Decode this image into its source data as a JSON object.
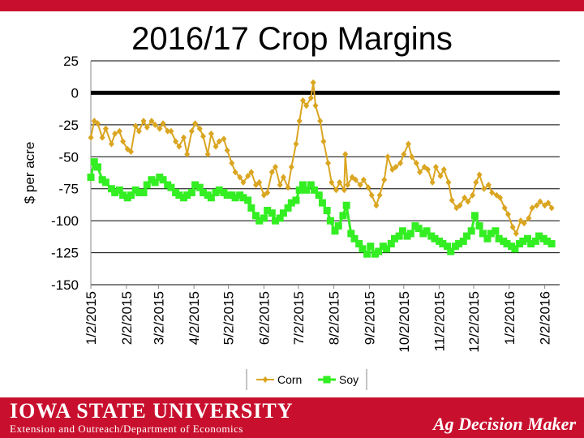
{
  "chart_data": {
    "type": "line",
    "title": "2016/17 Crop Margins",
    "ylabel": "$ per acre",
    "xlabel": "",
    "ylim": [
      -150,
      25
    ],
    "yticks": [
      25,
      0,
      -25,
      -50,
      -75,
      -100,
      -125,
      -150
    ],
    "xlim": [
      "2015-01-02",
      "2016-02-15"
    ],
    "x_tick_labels": [
      "1/2/2015",
      "2/2/2015",
      "3/2/2015",
      "4/2/2015",
      "5/2/2015",
      "6/2/2015",
      "7/2/2015",
      "8/2/2015",
      "9/2/2015",
      "10/2/2015",
      "11/2/2015",
      "12/2/2015",
      "1/2/2016",
      "2/2/2016"
    ],
    "x_tick_dates": [
      "2015-01-02",
      "2015-02-02",
      "2015-03-02",
      "2015-04-02",
      "2015-05-02",
      "2015-06-02",
      "2015-07-02",
      "2015-08-02",
      "2015-09-02",
      "2015-10-02",
      "2015-11-02",
      "2015-12-02",
      "2016-01-02",
      "2016-02-02"
    ],
    "grid": true,
    "zero_line": true,
    "legend_position": "bottom",
    "series": [
      {
        "name": "Corn",
        "color": "#daa520",
        "marker": "diamond",
        "points": [
          [
            "2015-01-02",
            -35
          ],
          [
            "2015-01-05",
            -22
          ],
          [
            "2015-01-08",
            -24
          ],
          [
            "2015-01-12",
            -35
          ],
          [
            "2015-01-15",
            -28
          ],
          [
            "2015-01-20",
            -40
          ],
          [
            "2015-01-23",
            -32
          ],
          [
            "2015-01-27",
            -30
          ],
          [
            "2015-01-30",
            -38
          ],
          [
            "2015-02-03",
            -44
          ],
          [
            "2015-02-06",
            -46
          ],
          [
            "2015-02-10",
            -26
          ],
          [
            "2015-02-13",
            -30
          ],
          [
            "2015-02-17",
            -22
          ],
          [
            "2015-02-20",
            -27
          ],
          [
            "2015-02-24",
            -22
          ],
          [
            "2015-02-27",
            -25
          ],
          [
            "2015-03-03",
            -28
          ],
          [
            "2015-03-06",
            -24
          ],
          [
            "2015-03-10",
            -30
          ],
          [
            "2015-03-13",
            -30
          ],
          [
            "2015-03-17",
            -38
          ],
          [
            "2015-03-20",
            -42
          ],
          [
            "2015-03-24",
            -35
          ],
          [
            "2015-03-27",
            -48
          ],
          [
            "2015-03-31",
            -30
          ],
          [
            "2015-04-03",
            -24
          ],
          [
            "2015-04-07",
            -28
          ],
          [
            "2015-04-10",
            -34
          ],
          [
            "2015-04-14",
            -48
          ],
          [
            "2015-04-17",
            -32
          ],
          [
            "2015-04-21",
            -42
          ],
          [
            "2015-04-24",
            -38
          ],
          [
            "2015-04-28",
            -36
          ],
          [
            "2015-05-01",
            -45
          ],
          [
            "2015-05-05",
            -55
          ],
          [
            "2015-05-08",
            -62
          ],
          [
            "2015-05-12",
            -66
          ],
          [
            "2015-05-15",
            -70
          ],
          [
            "2015-05-19",
            -65
          ],
          [
            "2015-05-22",
            -62
          ],
          [
            "2015-05-26",
            -72
          ],
          [
            "2015-05-29",
            -70
          ],
          [
            "2015-06-02",
            -80
          ],
          [
            "2015-06-05",
            -78
          ],
          [
            "2015-06-09",
            -62
          ],
          [
            "2015-06-12",
            -58
          ],
          [
            "2015-06-16",
            -72
          ],
          [
            "2015-06-19",
            -66
          ],
          [
            "2015-06-23",
            -74
          ],
          [
            "2015-06-26",
            -58
          ],
          [
            "2015-06-30",
            -40
          ],
          [
            "2015-07-03",
            -22
          ],
          [
            "2015-07-06",
            -6
          ],
          [
            "2015-07-09",
            -10
          ],
          [
            "2015-07-13",
            -4
          ],
          [
            "2015-07-15",
            8
          ],
          [
            "2015-07-17",
            -10
          ],
          [
            "2015-07-21",
            -22
          ],
          [
            "2015-07-24",
            -38
          ],
          [
            "2015-07-28",
            -55
          ],
          [
            "2015-07-31",
            -70
          ],
          [
            "2015-08-04",
            -76
          ],
          [
            "2015-08-07",
            -70
          ],
          [
            "2015-08-11",
            -76
          ],
          [
            "2015-08-12",
            -48
          ],
          [
            "2015-08-14",
            -72
          ],
          [
            "2015-08-18",
            -66
          ],
          [
            "2015-08-21",
            -68
          ],
          [
            "2015-08-25",
            -72
          ],
          [
            "2015-08-28",
            -68
          ],
          [
            "2015-09-01",
            -74
          ],
          [
            "2015-09-04",
            -80
          ],
          [
            "2015-09-08",
            -88
          ],
          [
            "2015-09-11",
            -80
          ],
          [
            "2015-09-15",
            -68
          ],
          [
            "2015-09-18",
            -50
          ],
          [
            "2015-09-22",
            -60
          ],
          [
            "2015-09-25",
            -58
          ],
          [
            "2015-09-29",
            -55
          ],
          [
            "2015-10-02",
            -48
          ],
          [
            "2015-10-06",
            -40
          ],
          [
            "2015-10-09",
            -50
          ],
          [
            "2015-10-13",
            -55
          ],
          [
            "2015-10-16",
            -62
          ],
          [
            "2015-10-20",
            -58
          ],
          [
            "2015-10-23",
            -60
          ],
          [
            "2015-10-27",
            -70
          ],
          [
            "2015-10-30",
            -58
          ],
          [
            "2015-11-03",
            -65
          ],
          [
            "2015-11-06",
            -60
          ],
          [
            "2015-11-10",
            -70
          ],
          [
            "2015-11-13",
            -84
          ],
          [
            "2015-11-17",
            -90
          ],
          [
            "2015-11-20",
            -88
          ],
          [
            "2015-11-24",
            -82
          ],
          [
            "2015-11-27",
            -85
          ],
          [
            "2015-12-01",
            -80
          ],
          [
            "2015-12-04",
            -70
          ],
          [
            "2015-12-07",
            -64
          ],
          [
            "2015-12-11",
            -75
          ],
          [
            "2015-12-15",
            -72
          ],
          [
            "2015-12-18",
            -78
          ],
          [
            "2015-12-22",
            -80
          ],
          [
            "2015-12-25",
            -82
          ],
          [
            "2015-12-29",
            -90
          ],
          [
            "2016-01-01",
            -95
          ],
          [
            "2016-01-05",
            -105
          ],
          [
            "2016-01-08",
            -110
          ],
          [
            "2016-01-12",
            -100
          ],
          [
            "2016-01-15",
            -102
          ],
          [
            "2016-01-19",
            -98
          ],
          [
            "2016-01-22",
            -90
          ],
          [
            "2016-01-26",
            -88
          ],
          [
            "2016-01-29",
            -85
          ],
          [
            "2016-02-02",
            -88
          ],
          [
            "2016-02-05",
            -86
          ],
          [
            "2016-02-08",
            -90
          ]
        ]
      },
      {
        "name": "Soy",
        "color": "#33ee22",
        "marker": "square",
        "points": [
          [
            "2015-01-02",
            -66
          ],
          [
            "2015-01-05",
            -54
          ],
          [
            "2015-01-08",
            -58
          ],
          [
            "2015-01-12",
            -68
          ],
          [
            "2015-01-15",
            -70
          ],
          [
            "2015-01-20",
            -75
          ],
          [
            "2015-01-23",
            -78
          ],
          [
            "2015-01-27",
            -76
          ],
          [
            "2015-01-30",
            -80
          ],
          [
            "2015-02-03",
            -82
          ],
          [
            "2015-02-06",
            -80
          ],
          [
            "2015-02-10",
            -76
          ],
          [
            "2015-02-13",
            -78
          ],
          [
            "2015-02-17",
            -78
          ],
          [
            "2015-02-20",
            -72
          ],
          [
            "2015-02-24",
            -68
          ],
          [
            "2015-02-27",
            -70
          ],
          [
            "2015-03-03",
            -66
          ],
          [
            "2015-03-06",
            -68
          ],
          [
            "2015-03-10",
            -72
          ],
          [
            "2015-03-13",
            -74
          ],
          [
            "2015-03-17",
            -78
          ],
          [
            "2015-03-20",
            -80
          ],
          [
            "2015-03-24",
            -82
          ],
          [
            "2015-03-27",
            -80
          ],
          [
            "2015-03-31",
            -78
          ],
          [
            "2015-04-03",
            -72
          ],
          [
            "2015-04-07",
            -74
          ],
          [
            "2015-04-10",
            -78
          ],
          [
            "2015-04-14",
            -80
          ],
          [
            "2015-04-17",
            -82
          ],
          [
            "2015-04-21",
            -78
          ],
          [
            "2015-04-24",
            -76
          ],
          [
            "2015-04-28",
            -78
          ],
          [
            "2015-05-01",
            -80
          ],
          [
            "2015-05-05",
            -80
          ],
          [
            "2015-05-08",
            -82
          ],
          [
            "2015-05-12",
            -80
          ],
          [
            "2015-05-15",
            -82
          ],
          [
            "2015-05-19",
            -84
          ],
          [
            "2015-05-22",
            -90
          ],
          [
            "2015-05-26",
            -96
          ],
          [
            "2015-05-29",
            -100
          ],
          [
            "2015-06-02",
            -98
          ],
          [
            "2015-06-05",
            -92
          ],
          [
            "2015-06-09",
            -94
          ],
          [
            "2015-06-12",
            -100
          ],
          [
            "2015-06-16",
            -98
          ],
          [
            "2015-06-19",
            -94
          ],
          [
            "2015-06-23",
            -90
          ],
          [
            "2015-06-26",
            -86
          ],
          [
            "2015-06-30",
            -84
          ],
          [
            "2015-07-03",
            -76
          ],
          [
            "2015-07-06",
            -72
          ],
          [
            "2015-07-09",
            -76
          ],
          [
            "2015-07-13",
            -72
          ],
          [
            "2015-07-16",
            -76
          ],
          [
            "2015-07-20",
            -80
          ],
          [
            "2015-07-23",
            -86
          ],
          [
            "2015-07-27",
            -92
          ],
          [
            "2015-07-30",
            -100
          ],
          [
            "2015-08-03",
            -108
          ],
          [
            "2015-08-06",
            -104
          ],
          [
            "2015-08-10",
            -96
          ],
          [
            "2015-08-13",
            -88
          ],
          [
            "2015-08-17",
            -110
          ],
          [
            "2015-08-20",
            -114
          ],
          [
            "2015-08-24",
            -118
          ],
          [
            "2015-08-27",
            -122
          ],
          [
            "2015-08-31",
            -126
          ],
          [
            "2015-09-03",
            -120
          ],
          [
            "2015-09-07",
            -126
          ],
          [
            "2015-09-10",
            -124
          ],
          [
            "2015-09-14",
            -120
          ],
          [
            "2015-09-17",
            -122
          ],
          [
            "2015-09-21",
            -118
          ],
          [
            "2015-09-24",
            -114
          ],
          [
            "2015-09-28",
            -112
          ],
          [
            "2015-10-01",
            -108
          ],
          [
            "2015-10-05",
            -112
          ],
          [
            "2015-10-08",
            -110
          ],
          [
            "2015-10-12",
            -104
          ],
          [
            "2015-10-15",
            -106
          ],
          [
            "2015-10-19",
            -110
          ],
          [
            "2015-10-22",
            -108
          ],
          [
            "2015-10-26",
            -112
          ],
          [
            "2015-10-29",
            -114
          ],
          [
            "2015-11-02",
            -116
          ],
          [
            "2015-11-05",
            -118
          ],
          [
            "2015-11-09",
            -120
          ],
          [
            "2015-11-12",
            -124
          ],
          [
            "2015-11-16",
            -120
          ],
          [
            "2015-11-19",
            -118
          ],
          [
            "2015-11-23",
            -116
          ],
          [
            "2015-11-26",
            -112
          ],
          [
            "2015-11-30",
            -108
          ],
          [
            "2015-12-03",
            -96
          ],
          [
            "2015-12-07",
            -104
          ],
          [
            "2015-12-10",
            -110
          ],
          [
            "2015-12-14",
            -114
          ],
          [
            "2015-12-17",
            -110
          ],
          [
            "2015-12-21",
            -108
          ],
          [
            "2015-12-24",
            -114
          ],
          [
            "2015-12-28",
            -116
          ],
          [
            "2015-12-31",
            -118
          ],
          [
            "2016-01-04",
            -120
          ],
          [
            "2016-01-07",
            -122
          ],
          [
            "2016-01-11",
            -118
          ],
          [
            "2016-01-14",
            -116
          ],
          [
            "2016-01-18",
            -114
          ],
          [
            "2016-01-21",
            -118
          ],
          [
            "2016-01-25",
            -116
          ],
          [
            "2016-01-28",
            -112
          ],
          [
            "2016-02-01",
            -114
          ],
          [
            "2016-02-04",
            -116
          ],
          [
            "2016-02-08",
            -118
          ]
        ]
      }
    ]
  },
  "footer": {
    "university": "IOWA STATE UNIVERSITY",
    "department": "Extension and Outreach/Department of Economics",
    "brand": "Ag Decision Maker"
  }
}
